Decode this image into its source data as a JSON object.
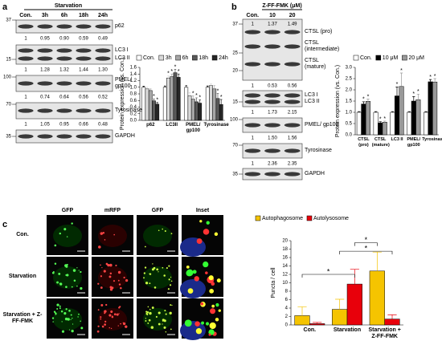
{
  "panel_labels": [
    "a",
    "b",
    "c"
  ],
  "blot_a": {
    "title": "Starvation",
    "lanes": [
      "Con.",
      "3h",
      "6h",
      "18h",
      "24h"
    ],
    "strips": [
      {
        "labels": [
          "p62"
        ],
        "markers": [
          "37"
        ],
        "quant": [
          [
            "1",
            "0.95",
            "0.90",
            "0.59",
            "0.49"
          ]
        ]
      },
      {
        "labels": [
          "LC3 I",
          "LC3 II"
        ],
        "markers": [
          "15"
        ],
        "quant": [
          [
            "1",
            "1.28",
            "1.32",
            "1.44",
            "1.30"
          ]
        ]
      },
      {
        "labels": [
          "PMEL/ gp100"
        ],
        "markers": [
          "100"
        ],
        "quant": [
          [
            "1",
            "0.74",
            "0.64",
            "0.56",
            "0.52"
          ]
        ]
      },
      {
        "labels": [
          "Tyrosinase"
        ],
        "markers": [
          "70"
        ],
        "quant": [
          [
            "1",
            "1.05",
            "0.95",
            "0.66",
            "0.48"
          ]
        ]
      },
      {
        "labels": [
          "GAPDH"
        ],
        "markers": [
          "35"
        ],
        "quant": []
      }
    ]
  },
  "blot_b": {
    "title": "Z-FF-FMK (μM)",
    "lanes": [
      "Con.",
      "10",
      "20"
    ],
    "strips": [
      {
        "labels": [
          "CTSL (pro)",
          "CTSL (intermediate)",
          "CTSL (mature)"
        ],
        "markers": [
          "37",
          "25",
          "20"
        ],
        "quant": [
          [
            "1",
            "1.37",
            "1.49"
          ],
          [
            "1",
            "0.53",
            "0.56"
          ]
        ]
      },
      {
        "labels": [
          "LC3 I",
          "LC3 II"
        ],
        "markers": [
          "15"
        ],
        "quant": [
          [
            "1",
            "1.73",
            "2.15"
          ]
        ]
      },
      {
        "labels": [
          "PMEL/ gp100"
        ],
        "markers": [
          "100"
        ],
        "quant": [
          [
            "1",
            "1.50",
            "1.56"
          ]
        ]
      },
      {
        "labels": [
          "Tyrosinase"
        ],
        "markers": [
          "70"
        ],
        "quant": [
          [
            "1",
            "2.36",
            "2.35"
          ]
        ]
      },
      {
        "labels": [
          "GAPDH"
        ],
        "markers": [
          "35"
        ],
        "quant": []
      }
    ]
  },
  "images_c": {
    "columns": [
      "GFP",
      "mRFP",
      "GFP",
      "Inset"
    ],
    "rows": [
      "Con.",
      "Starvation",
      "Starvation + Z-FF-FMK"
    ]
  },
  "chart_data": [
    {
      "type": "bar",
      "y_label": "Protein expression (vs. Con.)",
      "legend": "top",
      "categories": [
        "p62",
        "LC3II",
        "PMEL/ gp100",
        "Tyrosinase"
      ],
      "ylim": [
        0,
        1.6
      ],
      "yticks": [
        {
          "value": 0,
          "label": "0.0"
        },
        0.2,
        0.4,
        0.6,
        0.8,
        {
          "value": 1,
          "label": "1.0"
        },
        1.2,
        1.4,
        1.6
      ],
      "series": [
        {
          "name": "Con.",
          "color": "#ffffff",
          "values": [
            1,
            1,
            1,
            1
          ],
          "errors": [
            0.03,
            0.04,
            0.05,
            0.04
          ],
          "stars": [
            null,
            null,
            null,
            null
          ]
        },
        {
          "name": "3h",
          "color": "#d9d9d9",
          "values": [
            0.95,
            1.28,
            0.74,
            1.05
          ],
          "errors": [
            0.05,
            0.06,
            0.1,
            0.05
          ],
          "stars": [
            null,
            "*",
            null,
            null
          ]
        },
        {
          "name": "6h",
          "color": "#a6a6a6",
          "values": [
            0.9,
            1.32,
            0.64,
            0.95
          ],
          "errors": [
            0.05,
            0.08,
            0.1,
            0.1
          ],
          "stars": [
            null,
            "*",
            "*",
            null
          ]
        },
        {
          "name": "18h",
          "color": "#595959",
          "values": [
            0.59,
            1.44,
            0.56,
            0.66
          ],
          "errors": [
            0.06,
            0.1,
            0.12,
            0.15
          ],
          "stars": [
            "*",
            "*",
            "*",
            "*"
          ]
        },
        {
          "name": "24h",
          "color": "#262626",
          "values": [
            0.49,
            1.3,
            0.52,
            0.48
          ],
          "errors": [
            0.05,
            0.1,
            0.1,
            0.15
          ],
          "stars": [
            "*",
            "*",
            "*",
            "*"
          ]
        }
      ]
    },
    {
      "type": "bar",
      "y_label": "Protein expression (vs. Con.)",
      "legend": "top",
      "categories": [
        "CTSL (pro)",
        "CTSL (mature)",
        "LC3 II",
        "PMEL/ gp100",
        "Tyrosinase"
      ],
      "ylim": [
        0,
        3
      ],
      "yticks": [
        {
          "value": 0,
          "label": "0.0"
        },
        0.5,
        {
          "value": 1,
          "label": "1.0"
        },
        1.5,
        {
          "value": 2,
          "label": "2.0"
        },
        2.5,
        {
          "value": 3,
          "label": "3.0"
        }
      ],
      "series": [
        {
          "name": "Con.",
          "color": "#ffffff",
          "values": [
            1,
            1,
            1,
            1,
            1
          ],
          "errors": [
            0.03,
            0.03,
            0.03,
            0.03,
            0.03
          ],
          "stars": [
            null,
            null,
            null,
            null,
            null
          ]
        },
        {
          "name": "10 μM",
          "color": "#000000",
          "values": [
            1.37,
            0.53,
            1.73,
            1.5,
            2.36
          ],
          "errors": [
            0.1,
            0.05,
            0.4,
            0.2,
            0.1
          ],
          "stars": [
            "*",
            "*",
            "*",
            "*",
            "*"
          ]
        },
        {
          "name": "20 μM",
          "color": "#999999",
          "values": [
            1.49,
            0.56,
            2.15,
            1.56,
            2.35
          ],
          "errors": [
            0.1,
            0.05,
            0.6,
            0.25,
            0.15
          ],
          "stars": [
            "*",
            "*",
            "*",
            "*",
            "*"
          ]
        }
      ]
    },
    {
      "type": "bar",
      "y_label": "Puncta / cell",
      "legend": "top",
      "categories": [
        "Con.",
        "Starvation",
        "Starvation + Z-FF-FMK"
      ],
      "ylim": [
        0,
        20
      ],
      "yticks": [
        0,
        2,
        4,
        6,
        8,
        10,
        12,
        14,
        16,
        18,
        20
      ],
      "series": [
        {
          "name": "Autophagosome",
          "color": "#f5c400",
          "values": [
            2.2,
            3.7,
            12.8
          ],
          "errors": [
            2.1,
            2.4,
            4.5
          ],
          "stars": [
            null,
            null,
            null
          ]
        },
        {
          "name": "Autolysosome",
          "color": "#e8000b",
          "values": [
            0.3,
            9.7,
            1.4
          ],
          "errors": [
            0.3,
            3.5,
            1.0
          ],
          "stars": [
            null,
            null,
            null
          ]
        }
      ],
      "significance": [
        "*",
        "*",
        "*"
      ]
    }
  ]
}
